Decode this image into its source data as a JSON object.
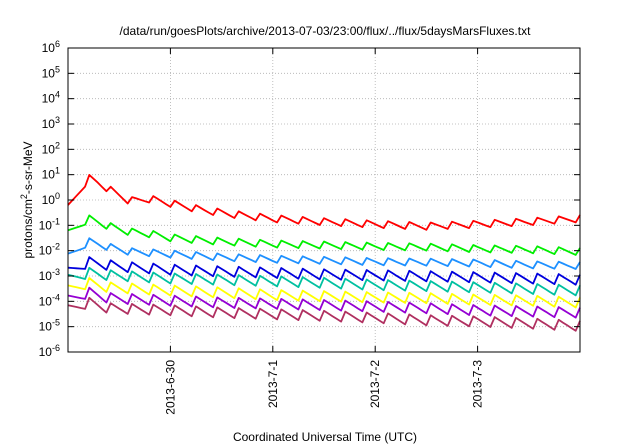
{
  "chart_data": {
    "type": "line",
    "title": "/data/run/goesPlots/archive/2013-07-03/23:00/flux/../flux/5daysMarsFluxes.txt",
    "xlabel": "Coordinated Universal Time (UTC)",
    "ylabel_main": "protons/cm",
    "ylabel_sup": "2",
    "ylabel_rest": "-s-sr-MeV",
    "x_range_days": [
      -1,
      4
    ],
    "x_ticks": [
      {
        "day": 0,
        "label": "2013-6-30"
      },
      {
        "day": 1,
        "label": "2013-7-1"
      },
      {
        "day": 2,
        "label": "2013-7-2"
      },
      {
        "day": 3,
        "label": "2013-7-3"
      }
    ],
    "y_scale": "log",
    "y_exponent_range": [
      -6,
      6
    ],
    "y_ticks": [
      {
        "base": "10",
        "exp": "6",
        "value": 1000000.0
      },
      {
        "base": "10",
        "exp": "5",
        "value": 100000.0
      },
      {
        "base": "10",
        "exp": "4",
        "value": 10000.0
      },
      {
        "base": "10",
        "exp": "3",
        "value": 1000.0
      },
      {
        "base": "10",
        "exp": "2",
        "value": 100.0
      },
      {
        "base": "10",
        "exp": "1",
        "value": 10.0
      },
      {
        "base": "10",
        "exp": "0",
        "value": 1
      },
      {
        "base": "10",
        "exp": "-1",
        "value": 0.1
      },
      {
        "base": "10",
        "exp": "-2",
        "value": 0.01
      },
      {
        "base": "10",
        "exp": "-3",
        "value": 0.001
      },
      {
        "base": "10",
        "exp": "-4",
        "value": 0.0001
      },
      {
        "base": "10",
        "exp": "-5",
        "value": 1e-05
      },
      {
        "base": "10",
        "exp": "-6",
        "value": 1e-06
      }
    ],
    "grid": true,
    "series": [
      {
        "color": "#ff0000",
        "points": [
          [
            -1.0,
            0.5
          ],
          [
            -0.9,
            2
          ],
          [
            -0.8,
            8
          ],
          [
            -0.7,
            5
          ],
          [
            -0.55,
            2.2
          ],
          [
            -0.4,
            1.0
          ],
          [
            -0.2,
            1.2
          ],
          [
            0.0,
            0.8
          ],
          [
            0.3,
            0.45
          ],
          [
            0.6,
            0.3
          ],
          [
            1.0,
            0.2
          ],
          [
            1.5,
            0.15
          ],
          [
            2.0,
            0.12
          ],
          [
            2.5,
            0.1
          ],
          [
            3.0,
            0.12
          ],
          [
            3.5,
            0.15
          ],
          [
            4.0,
            0.2
          ]
        ]
      },
      {
        "color": "#00ee00",
        "points": [
          [
            -1.0,
            0.05
          ],
          [
            -0.9,
            0.1
          ],
          [
            -0.8,
            0.2
          ],
          [
            -0.6,
            0.1
          ],
          [
            -0.4,
            0.06
          ],
          [
            -0.2,
            0.05
          ],
          [
            0.0,
            0.035
          ],
          [
            0.5,
            0.025
          ],
          [
            1.0,
            0.02
          ],
          [
            1.5,
            0.018
          ],
          [
            2.0,
            0.016
          ],
          [
            2.5,
            0.015
          ],
          [
            3.0,
            0.013
          ],
          [
            3.5,
            0.012
          ],
          [
            4.0,
            0.01
          ]
        ]
      },
      {
        "color": "#1e90ff",
        "points": [
          [
            -1.0,
            0.006
          ],
          [
            -0.9,
            0.012
          ],
          [
            -0.8,
            0.025
          ],
          [
            -0.6,
            0.015
          ],
          [
            -0.4,
            0.01
          ],
          [
            -0.2,
            0.009
          ],
          [
            0.0,
            0.008
          ],
          [
            0.5,
            0.006
          ],
          [
            1.0,
            0.005
          ],
          [
            1.5,
            0.0045
          ],
          [
            2.0,
            0.004
          ],
          [
            2.5,
            0.0038
          ],
          [
            3.0,
            0.0035
          ],
          [
            3.5,
            0.003
          ],
          [
            4.0,
            0.0028
          ]
        ]
      },
      {
        "color": "#0000dd",
        "points": [
          [
            -1.0,
            0.0015
          ],
          [
            -0.8,
            0.004
          ],
          [
            -0.6,
            0.003
          ],
          [
            -0.4,
            0.0025
          ],
          [
            0.0,
            0.002
          ],
          [
            0.5,
            0.0017
          ],
          [
            1.0,
            0.0015
          ],
          [
            1.5,
            0.0013
          ],
          [
            2.0,
            0.0012
          ],
          [
            2.5,
            0.0011
          ],
          [
            3.0,
            0.001
          ],
          [
            3.5,
            0.0009
          ],
          [
            4.0,
            0.0008
          ]
        ]
      },
      {
        "color": "#00c0a0",
        "points": [
          [
            -1.0,
            0.0008
          ],
          [
            -0.8,
            0.0015
          ],
          [
            -0.6,
            0.0012
          ],
          [
            0.0,
            0.0009
          ],
          [
            0.5,
            0.0008
          ],
          [
            1.0,
            0.0007
          ],
          [
            1.5,
            0.0006
          ],
          [
            2.0,
            0.0005
          ],
          [
            2.5,
            0.00045
          ],
          [
            3.0,
            0.0004
          ],
          [
            3.5,
            0.00035
          ],
          [
            4.0,
            0.0003
          ]
        ]
      },
      {
        "color": "#ffff00",
        "points": [
          [
            -1.0,
            0.0003
          ],
          [
            -0.8,
            0.0006
          ],
          [
            -0.6,
            0.0004
          ],
          [
            0.0,
            0.0003
          ],
          [
            0.5,
            0.00025
          ],
          [
            1.0,
            0.0002
          ],
          [
            1.5,
            0.00018
          ],
          [
            2.0,
            0.00016
          ],
          [
            2.5,
            0.00015
          ],
          [
            3.0,
            0.00013
          ],
          [
            3.5,
            0.00012
          ],
          [
            4.0,
            0.0001
          ]
        ]
      },
      {
        "color": "#9400d3",
        "points": [
          [
            -1.0,
            0.00012
          ],
          [
            -0.8,
            0.00025
          ],
          [
            -0.6,
            0.00015
          ],
          [
            0.0,
            0.00012
          ],
          [
            0.5,
            0.0001
          ],
          [
            1.0,
            9e-05
          ],
          [
            1.5,
            8e-05
          ],
          [
            2.0,
            7e-05
          ],
          [
            2.5,
            6e-05
          ],
          [
            3.0,
            5e-05
          ],
          [
            3.5,
            4.5e-05
          ],
          [
            4.0,
            4e-05
          ]
        ]
      },
      {
        "color": "#b03060",
        "points": [
          [
            -1.0,
            5e-05
          ],
          [
            -0.8,
            0.0001
          ],
          [
            -0.6,
            6e-05
          ],
          [
            0.0,
            5e-05
          ],
          [
            0.5,
            4e-05
          ],
          [
            1.0,
            3.5e-05
          ],
          [
            1.5,
            3e-05
          ],
          [
            2.0,
            2.5e-05
          ],
          [
            2.5,
            2e-05
          ],
          [
            3.0,
            1.8e-05
          ],
          [
            3.5,
            1.5e-05
          ],
          [
            4.0,
            1.2e-05
          ]
        ]
      }
    ]
  }
}
